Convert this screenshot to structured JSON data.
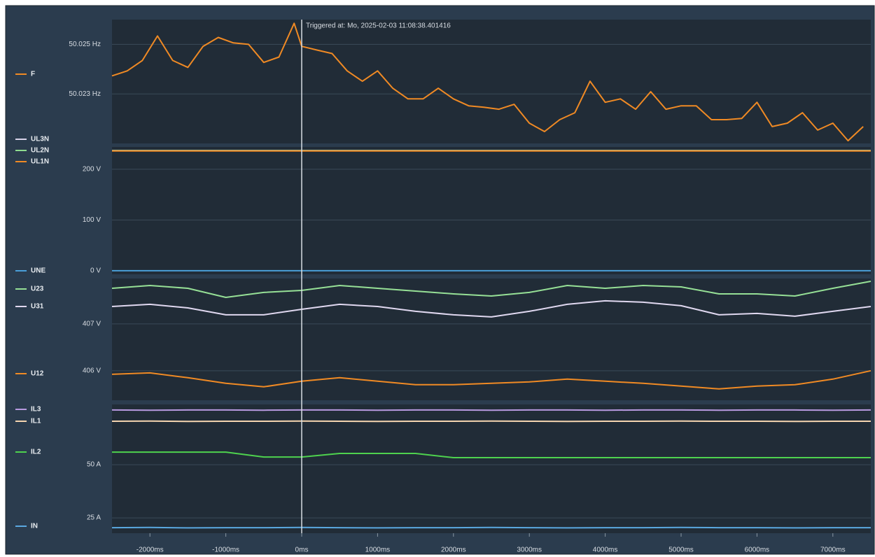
{
  "chart_data": [
    {
      "type": "line",
      "xlim": [
        -2500,
        7500
      ],
      "ylim": [
        50.021,
        50.026
      ],
      "yticks": [
        {
          "value": 50.023,
          "label": "50.023 Hz"
        },
        {
          "value": 50.025,
          "label": "50.025 Hz"
        }
      ],
      "grid": true,
      "annotation": {
        "text": "Triggered at: Mo, 2025-02-03 11:08:38.401416",
        "x": 0
      },
      "x": [
        -2500,
        -2300,
        -2100,
        -1900,
        -1700,
        -1500,
        -1300,
        -1100,
        -900,
        -700,
        -500,
        -300,
        -100,
        0,
        200,
        400,
        600,
        800,
        1000,
        1200,
        1400,
        1600,
        1800,
        2000,
        2200,
        2400,
        2600,
        2800,
        3000,
        3200,
        3400,
        3600,
        3800,
        4000,
        4200,
        4400,
        4600,
        4800,
        5000,
        5200,
        5400,
        5600,
        5800,
        6000,
        6200,
        6400,
        6600,
        6800,
        7000,
        7200,
        7400
      ],
      "series": [
        {
          "name": "F",
          "color": "#f08a24",
          "values": [
            50.02373,
            50.02393,
            50.02435,
            50.02534,
            50.02435,
            50.02407,
            50.02492,
            50.02528,
            50.02506,
            50.025,
            50.02427,
            50.02449,
            50.02585,
            50.02492,
            50.02477,
            50.02463,
            50.02393,
            50.02351,
            50.02393,
            50.02323,
            50.0228,
            50.0228,
            50.02323,
            50.0228,
            50.02252,
            50.02246,
            50.02238,
            50.02258,
            50.02182,
            50.02148,
            50.02196,
            50.02224,
            50.02351,
            50.02266,
            50.0228,
            50.02238,
            50.02309,
            50.02238,
            50.02252,
            50.02252,
            50.02196,
            50.02196,
            50.02201,
            50.02266,
            50.02168,
            50.02182,
            50.02224,
            50.02154,
            50.02182,
            50.02111,
            50.02168
          ]
        }
      ]
    },
    {
      "type": "line",
      "xlim": [
        -2500,
        7500
      ],
      "ylim": [
        -7,
        244
      ],
      "yticks": [
        {
          "value": 0,
          "label": "0 V"
        },
        {
          "value": 100,
          "label": "100 V"
        },
        {
          "value": 200,
          "label": "200 V"
        }
      ],
      "grid": true,
      "x": [
        -2500,
        -1500,
        -500,
        500,
        1500,
        2500,
        3500,
        4500,
        5500,
        6500,
        7500
      ],
      "series": [
        {
          "name": "UL3N",
          "color": "#d9d3ea",
          "values": [
            237,
            237,
            237,
            237,
            237,
            237,
            237,
            237,
            237,
            237,
            237
          ]
        },
        {
          "name": "UL2N",
          "color": "#8fdc8f",
          "values": [
            236.5,
            236.5,
            236.5,
            236.5,
            236.5,
            236.5,
            236.5,
            236.5,
            236.5,
            236.5,
            236.5
          ]
        },
        {
          "name": "UL1N",
          "color": "#f08a24",
          "values": [
            236,
            236,
            236,
            236,
            236,
            236,
            236,
            236,
            236,
            236,
            236
          ]
        },
        {
          "name": "UNE",
          "color": "#4a9fd8",
          "values": [
            0,
            0,
            0,
            0,
            0,
            0,
            0,
            0,
            0,
            0,
            0
          ]
        }
      ]
    },
    {
      "type": "line",
      "xlim": [
        -2500,
        7500
      ],
      "ylim": [
        405.37,
        407.97
      ],
      "yticks": [
        {
          "value": 406,
          "label": "406 V"
        },
        {
          "value": 407,
          "label": "407 V"
        }
      ],
      "grid": true,
      "x": [
        -2500,
        -2000,
        -1500,
        -1000,
        -500,
        0,
        500,
        1000,
        1500,
        2000,
        2500,
        3000,
        3500,
        4000,
        4500,
        5000,
        5500,
        6000,
        6500,
        7000,
        7500
      ],
      "series": [
        {
          "name": "U23",
          "color": "#96e096",
          "values": [
            407.761,
            407.821,
            407.761,
            407.567,
            407.672,
            407.716,
            407.821,
            407.761,
            407.701,
            407.642,
            407.597,
            407.672,
            407.821,
            407.761,
            407.821,
            407.791,
            407.642,
            407.642,
            407.597,
            407.761,
            407.91
          ]
        },
        {
          "name": "U31",
          "color": "#e0d8f0",
          "values": [
            407.373,
            407.418,
            407.343,
            407.194,
            407.194,
            407.313,
            407.418,
            407.373,
            407.269,
            407.194,
            407.149,
            407.269,
            407.418,
            407.493,
            407.463,
            407.388,
            407.194,
            407.224,
            407.164,
            407.269,
            407.373
          ]
        },
        {
          "name": "U12",
          "color": "#f08a24",
          "values": [
            405.925,
            405.955,
            405.851,
            405.731,
            405.657,
            405.776,
            405.851,
            405.776,
            405.701,
            405.701,
            405.731,
            405.761,
            405.821,
            405.776,
            405.731,
            405.672,
            405.612,
            405.672,
            405.701,
            405.821,
            406.0
          ]
        }
      ]
    },
    {
      "type": "line",
      "xlim": [
        -2500,
        7500
      ],
      "ylim": [
        17.8,
        78.3
      ],
      "yticks": [
        {
          "value": 25,
          "label": "25 A"
        },
        {
          "value": 50,
          "label": "50 A"
        }
      ],
      "grid": true,
      "xticks": [
        {
          "value": -2000,
          "label": "-2000ms"
        },
        {
          "value": -1000,
          "label": "-1000ms"
        },
        {
          "value": 0,
          "label": "0ms"
        },
        {
          "value": 1000,
          "label": "1000ms"
        },
        {
          "value": 2000,
          "label": "2000ms"
        },
        {
          "value": 3000,
          "label": "3000ms"
        },
        {
          "value": 4000,
          "label": "4000ms"
        },
        {
          "value": 5000,
          "label": "5000ms"
        },
        {
          "value": 6000,
          "label": "6000ms"
        },
        {
          "value": 7000,
          "label": "7000ms"
        }
      ],
      "x": [
        -2500,
        -2000,
        -1500,
        -1000,
        -500,
        0,
        500,
        1000,
        1500,
        2000,
        2500,
        3000,
        3500,
        4000,
        4500,
        5000,
        5500,
        6000,
        6500,
        7000,
        7500
      ],
      "series": [
        {
          "name": "IL3",
          "color": "#b89ae0",
          "values": [
            75.7,
            75.6,
            75.7,
            75.7,
            75.6,
            75.7,
            75.7,
            75.6,
            75.7,
            75.7,
            75.6,
            75.7,
            75.7,
            75.6,
            75.7,
            75.7,
            75.6,
            75.7,
            75.7,
            75.6,
            75.7
          ]
        },
        {
          "name": "IL1",
          "color": "#f5d5b0",
          "values": [
            70.4,
            70.5,
            70.3,
            70.4,
            70.4,
            70.5,
            70.4,
            70.3,
            70.4,
            70.4,
            70.5,
            70.4,
            70.3,
            70.4,
            70.4,
            70.5,
            70.4,
            70.4,
            70.3,
            70.4,
            70.4
          ]
        },
        {
          "name": "IL2",
          "color": "#4ed24e",
          "values": [
            55.9,
            55.9,
            55.9,
            55.9,
            53.6,
            53.6,
            55.3,
            55.3,
            55.3,
            53.3,
            53.3,
            53.3,
            53.3,
            53.3,
            53.3,
            53.3,
            53.3,
            53.3,
            53.3,
            53.3,
            53.3
          ]
        },
        {
          "name": "IN",
          "color": "#5aa8e0",
          "values": [
            20.4,
            20.5,
            20.3,
            20.4,
            20.4,
            20.5,
            20.4,
            20.3,
            20.4,
            20.4,
            20.5,
            20.4,
            20.3,
            20.4,
            20.4,
            20.5,
            20.4,
            20.4,
            20.3,
            20.4,
            20.4
          ]
        }
      ]
    }
  ]
}
